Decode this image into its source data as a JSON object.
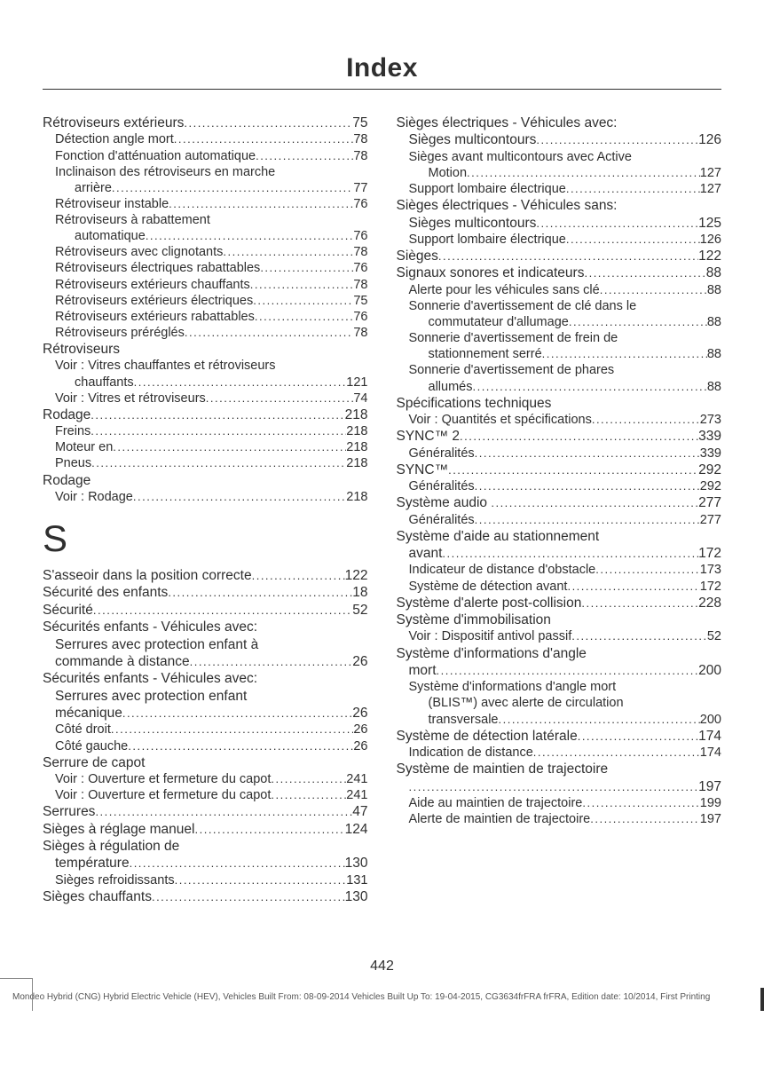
{
  "title": "Index",
  "page_number": "442",
  "footer": "Mondeo Hybrid (CNG) Hybrid Electric Vehicle (HEV), Vehicles Built From: 08-09-2014 Vehicles Built Up To: 19-04-2015, CG3634frFRA frFRA, Edition date: 10/2014, First Printing",
  "left": [
    {
      "label": "Rétroviseurs extérieurs",
      "page": "75",
      "indent": 0,
      "sub": false
    },
    {
      "label": "Détection angle mort",
      "page": "78",
      "indent": 1,
      "sub": true
    },
    {
      "label": "Fonction d'atténuation automatique",
      "page": "78",
      "indent": 1,
      "sub": true
    },
    {
      "label": "Inclinaison des rétroviseurs en marche",
      "indent": 1,
      "sub": true,
      "nopage": true
    },
    {
      "label": "arrière",
      "page": "77",
      "indent": 2,
      "sub": true
    },
    {
      "label": "Rétroviseur instable",
      "page": "76",
      "indent": 1,
      "sub": true
    },
    {
      "label": "Rétroviseurs à rabattement",
      "indent": 1,
      "sub": true,
      "nopage": true
    },
    {
      "label": "automatique",
      "page": "76",
      "indent": 2,
      "sub": true
    },
    {
      "label": "Rétroviseurs avec clignotants",
      "page": "78",
      "indent": 1,
      "sub": true
    },
    {
      "label": "Rétroviseurs électriques rabattables",
      "page": "76",
      "indent": 1,
      "sub": true
    },
    {
      "label": "Rétroviseurs extérieurs chauffants",
      "page": "78",
      "indent": 1,
      "sub": true
    },
    {
      "label": "Rétroviseurs extérieurs électriques",
      "page": "75",
      "indent": 1,
      "sub": true
    },
    {
      "label": "Rétroviseurs extérieurs rabattables",
      "page": "76",
      "indent": 1,
      "sub": true
    },
    {
      "label": "Rétroviseurs préréglés",
      "page": "78",
      "indent": 1,
      "sub": true
    },
    {
      "label": "Rétroviseurs",
      "indent": 0,
      "sub": false,
      "nopage": true
    },
    {
      "label": "Voir : Vitres chauffantes et rétroviseurs",
      "indent": 1,
      "sub": true,
      "nopage": true
    },
    {
      "label": "chauffants",
      "page": "121",
      "indent": 2,
      "sub": true
    },
    {
      "label": "Voir : Vitres et rétroviseurs",
      "page": "74",
      "indent": 1,
      "sub": true
    },
    {
      "label": "Rodage",
      "page": "218",
      "indent": 0,
      "sub": false
    },
    {
      "label": "Freins",
      "page": "218",
      "indent": 1,
      "sub": true
    },
    {
      "label": "Moteur en",
      "page": "218",
      "indent": 1,
      "sub": true
    },
    {
      "label": "Pneus",
      "page": "218",
      "indent": 1,
      "sub": true
    },
    {
      "label": "Rodage",
      "indent": 0,
      "sub": false,
      "nopage": true
    },
    {
      "label": "Voir : Rodage",
      "page": "218",
      "indent": 1,
      "sub": true
    },
    {
      "letter": "S"
    },
    {
      "label": "S'asseoir dans la position correcte",
      "page": "122",
      "indent": 0,
      "sub": false
    },
    {
      "label": "Sécurité des enfants",
      "page": "18",
      "indent": 0,
      "sub": false
    },
    {
      "label": "Sécurité",
      "page": "52",
      "indent": 0,
      "sub": false
    },
    {
      "label": "Sécurités enfants - Véhicules avec:",
      "indent": 0,
      "sub": false,
      "nopage": true
    },
    {
      "label": "Serrures avec protection enfant à",
      "indent": 1,
      "sub": false,
      "nopage": true
    },
    {
      "label": "commande à distance",
      "page": "26",
      "indent": 1,
      "sub": false
    },
    {
      "label": "Sécurités enfants - Véhicules avec:",
      "indent": 0,
      "sub": false,
      "nopage": true
    },
    {
      "label": "Serrures avec protection enfant",
      "indent": 1,
      "sub": false,
      "nopage": true
    },
    {
      "label": "mécanique",
      "page": "26",
      "indent": 1,
      "sub": false
    },
    {
      "label": "Côté droit",
      "page": "26",
      "indent": 1,
      "sub": true
    },
    {
      "label": "Côté gauche",
      "page": "26",
      "indent": 1,
      "sub": true
    },
    {
      "label": "Serrure de capot",
      "indent": 0,
      "sub": false,
      "nopage": true
    },
    {
      "label": "Voir : Ouverture et fermeture du capot",
      "page": "241",
      "indent": 1,
      "sub": true
    },
    {
      "label": "Voir : Ouverture et fermeture du capot",
      "page": "241",
      "indent": 1,
      "sub": true
    },
    {
      "label": "Serrures",
      "page": "47",
      "indent": 0,
      "sub": false
    },
    {
      "label": "Sièges à réglage manuel",
      "page": "124",
      "indent": 0,
      "sub": false
    },
    {
      "label": "Sièges à régulation de",
      "indent": 0,
      "sub": false,
      "nopage": true
    },
    {
      "label": "température",
      "page": "130",
      "indent": 1,
      "sub": false
    },
    {
      "label": "Sièges refroidissants",
      "page": "131",
      "indent": 1,
      "sub": true
    },
    {
      "label": "Sièges chauffants",
      "page": "130",
      "indent": 0,
      "sub": false
    }
  ],
  "right": [
    {
      "label": "Sièges électriques - Véhicules avec:",
      "indent": 0,
      "sub": false,
      "nopage": true
    },
    {
      "label": "Sièges multicontours",
      "page": "126",
      "indent": 1,
      "sub": false
    },
    {
      "label": "Sièges avant multicontours avec Active",
      "indent": 1,
      "sub": true,
      "nopage": true
    },
    {
      "label": "Motion",
      "page": "127",
      "indent": 2,
      "sub": true
    },
    {
      "label": "Support lombaire électrique",
      "page": "127",
      "indent": 1,
      "sub": true
    },
    {
      "label": "Sièges électriques - Véhicules sans:",
      "indent": 0,
      "sub": false,
      "nopage": true
    },
    {
      "label": "Sièges multicontours",
      "page": "125",
      "indent": 1,
      "sub": false
    },
    {
      "label": "Support lombaire électrique",
      "page": "126",
      "indent": 1,
      "sub": true
    },
    {
      "label": "Sièges",
      "page": "122",
      "indent": 0,
      "sub": false
    },
    {
      "label": "Signaux sonores et indicateurs",
      "page": "88",
      "indent": 0,
      "sub": false
    },
    {
      "label": "Alerte pour les véhicules sans clé",
      "page": "88",
      "indent": 1,
      "sub": true
    },
    {
      "label": "Sonnerie d'avertissement de clé dans le",
      "indent": 1,
      "sub": true,
      "nopage": true
    },
    {
      "label": "commutateur d'allumage",
      "page": "88",
      "indent": 2,
      "sub": true
    },
    {
      "label": "Sonnerie d'avertissement de frein de",
      "indent": 1,
      "sub": true,
      "nopage": true
    },
    {
      "label": "stationnement serré",
      "page": "88",
      "indent": 2,
      "sub": true
    },
    {
      "label": "Sonnerie d'avertissement de phares",
      "indent": 1,
      "sub": true,
      "nopage": true
    },
    {
      "label": "allumés",
      "page": "88",
      "indent": 2,
      "sub": true
    },
    {
      "label": "Spécifications techniques",
      "indent": 0,
      "sub": false,
      "nopage": true
    },
    {
      "label": "Voir : Quantités et spécifications",
      "page": "273",
      "indent": 1,
      "sub": true
    },
    {
      "label": "SYNC™ 2",
      "page": "339",
      "indent": 0,
      "sub": false
    },
    {
      "label": "Généralités",
      "page": "339",
      "indent": 1,
      "sub": true
    },
    {
      "label": "SYNC™",
      "page": "292",
      "indent": 0,
      "sub": false
    },
    {
      "label": "Généralités",
      "page": "292",
      "indent": 1,
      "sub": true
    },
    {
      "label": "Système audio ",
      "page": "277",
      "indent": 0,
      "sub": false
    },
    {
      "label": "Généralités",
      "page": "277",
      "indent": 1,
      "sub": true
    },
    {
      "label": "Système d'aide au stationnement",
      "indent": 0,
      "sub": false,
      "nopage": true
    },
    {
      "label": "avant",
      "page": "172",
      "indent": 1,
      "sub": false
    },
    {
      "label": "Indicateur de distance d'obstacle",
      "page": "173",
      "indent": 1,
      "sub": true
    },
    {
      "label": "Système de détection avant",
      "page": "172",
      "indent": 1,
      "sub": true
    },
    {
      "label": "Système d'alerte post-collision",
      "page": "228",
      "indent": 0,
      "sub": false
    },
    {
      "label": "Système d'immobilisation",
      "indent": 0,
      "sub": false,
      "nopage": true
    },
    {
      "label": "Voir : Dispositif antivol passif",
      "page": "52",
      "indent": 1,
      "sub": true
    },
    {
      "label": "Système d'informations d'angle",
      "indent": 0,
      "sub": false,
      "nopage": true
    },
    {
      "label": "mort",
      "page": "200",
      "indent": 1,
      "sub": false
    },
    {
      "label": "Système d'informations d'angle mort",
      "indent": 1,
      "sub": true,
      "nopage": true
    },
    {
      "label": "(BLIS™) avec alerte de circulation",
      "indent": 2,
      "sub": true,
      "nopage": true
    },
    {
      "label": "transversale",
      "page": "200",
      "indent": 2,
      "sub": true
    },
    {
      "label": "Système de détection latérale",
      "page": "174",
      "indent": 0,
      "sub": false
    },
    {
      "label": "Indication de distance",
      "page": "174",
      "indent": 1,
      "sub": true
    },
    {
      "label": "Système de maintien de trajectoire",
      "indent": 0,
      "sub": false,
      "nopage": true
    },
    {
      "label": "",
      "page": "197",
      "indent": 1,
      "sub": false
    },
    {
      "label": "Aide au maintien de trajectoire",
      "page": "199",
      "indent": 1,
      "sub": true
    },
    {
      "label": "Alerte de maintien de trajectoire",
      "page": "197",
      "indent": 1,
      "sub": true
    }
  ]
}
